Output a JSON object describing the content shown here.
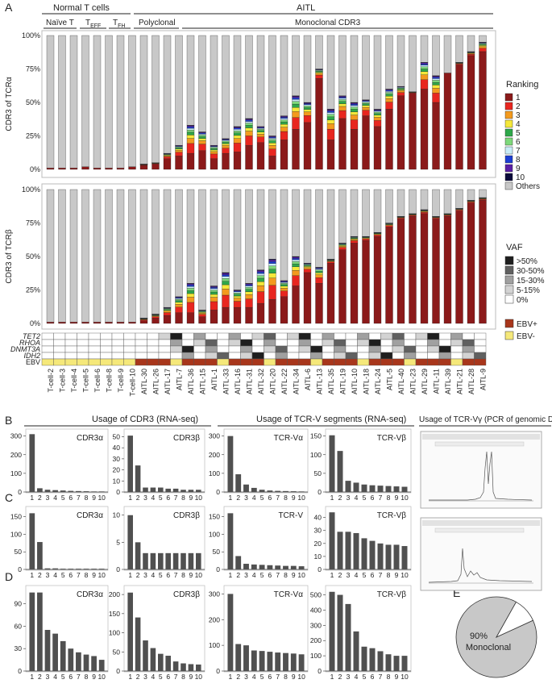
{
  "panel_labels": {
    "A": "A",
    "B": "B",
    "C": "C",
    "D": "D",
    "E": "E"
  },
  "top_headers": {
    "normal": "Normal T cells",
    "aitl": "AITL",
    "naive": "Naïve T",
    "teff": "T",
    "teff_sub": "EFF",
    "tfh": "T",
    "tfh_sub": "FH",
    "polyclonal": "Polyclonal",
    "monoclonal": "Monoclonal CDR3"
  },
  "samples": [
    "T-cell-2",
    "T-cell-3",
    "T-cell-4",
    "T-cell-5",
    "T-cell-6",
    "T-cell-8",
    "T-cell-9",
    "T-cell-10",
    "AITL-30",
    "AITL-26",
    "AITL-17",
    "AITL-7",
    "AITL-36",
    "AITL-15",
    "AITL-1",
    "AITL-33",
    "AITL-16",
    "AITL-31",
    "AITL-32",
    "AITL-20",
    "AITL-22",
    "AITL-34",
    "AITL-6",
    "AITL-13",
    "AITL-35",
    "AITL-19",
    "AITL-10",
    "AITL-18",
    "AITL-24",
    "AITL-5",
    "AITL-40",
    "AITL-23",
    "AITL-29",
    "AITL-11",
    "AITL-39",
    "AITL-21",
    "AITL-28",
    "AITL-9"
  ],
  "chart_data": [
    {
      "id": "A-alpha",
      "type": "bar",
      "subtype": "stacked-100",
      "title": "",
      "ylabel": "CDR3 of TCRα",
      "yticks": [
        "0%",
        "25%",
        "50%",
        "75%",
        "100%"
      ],
      "ylim": [
        0,
        100
      ],
      "top1": [
        1,
        1,
        1,
        2,
        1,
        1,
        1,
        2,
        3,
        4,
        8,
        10,
        12,
        14,
        8,
        12,
        13,
        18,
        20,
        10,
        22,
        30,
        35,
        68,
        22,
        38,
        30,
        40,
        32,
        45,
        55,
        57,
        60,
        50,
        72,
        78,
        85,
        88
      ],
      "others": [
        99,
        99,
        99,
        98,
        99,
        99,
        99,
        98,
        96,
        95,
        88,
        82,
        67,
        72,
        82,
        77,
        68,
        62,
        68,
        75,
        60,
        45,
        50,
        25,
        55,
        45,
        50,
        48,
        55,
        40,
        38,
        42,
        20,
        30,
        28,
        20,
        12,
        5
      ]
    },
    {
      "id": "A-beta",
      "type": "bar",
      "subtype": "stacked-100",
      "title": "",
      "ylabel": "CDR3 of TCRβ",
      "yticks": [
        "0%",
        "25%",
        "50%",
        "75%",
        "100%"
      ],
      "ylim": [
        0,
        100
      ],
      "top1": [
        1,
        1,
        1,
        1,
        1,
        1,
        1,
        1,
        2,
        4,
        6,
        8,
        8,
        5,
        10,
        12,
        12,
        12,
        15,
        18,
        20,
        28,
        38,
        30,
        45,
        55,
        60,
        62,
        65,
        72,
        78,
        80,
        82,
        78,
        80,
        84,
        90,
        92
      ],
      "others": [
        99,
        99,
        99,
        99,
        99,
        99,
        99,
        99,
        96,
        93,
        88,
        80,
        70,
        90,
        72,
        62,
        75,
        70,
        60,
        52,
        68,
        50,
        55,
        58,
        52,
        40,
        35,
        35,
        32,
        25,
        20,
        18,
        15,
        20,
        18,
        14,
        8,
        6
      ]
    },
    {
      "id": "B-CDR3a",
      "type": "bar",
      "title": "CDR3α",
      "categories": [
        "1",
        "2",
        "3",
        "4",
        "5",
        "6",
        "7",
        "8",
        "9",
        "10"
      ],
      "values": [
        310,
        20,
        12,
        10,
        8,
        6,
        5,
        4,
        3,
        3
      ],
      "yticks": [
        "0",
        "100",
        "200",
        "300"
      ],
      "ylim": [
        0,
        320
      ]
    },
    {
      "id": "B-CDR3b",
      "type": "bar",
      "title": "CDR3β",
      "categories": [
        "1",
        "2",
        "3",
        "4",
        "5",
        "6",
        "7",
        "8",
        "9",
        "10"
      ],
      "values": [
        51,
        24,
        4,
        4,
        4,
        3,
        3,
        2,
        2,
        2
      ],
      "yticks": [
        "0",
        "10",
        "20",
        "30",
        "40",
        "50"
      ],
      "ylim": [
        0,
        54
      ]
    },
    {
      "id": "B-TCRVa",
      "type": "bar",
      "title": "TCR-Vα",
      "categories": [
        "1",
        "2",
        "3",
        "4",
        "5",
        "6",
        "7",
        "8",
        "9",
        "10"
      ],
      "values": [
        300,
        95,
        40,
        22,
        12,
        8,
        6,
        5,
        4,
        3
      ],
      "yticks": [
        "0",
        "100",
        "200",
        "300"
      ],
      "ylim": [
        0,
        320
      ]
    },
    {
      "id": "B-TCRVb",
      "type": "bar",
      "title": "TCR-Vβ",
      "categories": [
        "1",
        "2",
        "3",
        "4",
        "5",
        "6",
        "7",
        "8",
        "9",
        "10"
      ],
      "values": [
        152,
        110,
        30,
        25,
        20,
        18,
        17,
        16,
        15,
        14
      ],
      "yticks": [
        "0",
        "50",
        "100",
        "150"
      ],
      "ylim": [
        0,
        160
      ]
    },
    {
      "id": "C-CDR3a",
      "type": "bar",
      "title": "CDR3α",
      "categories": [
        "1",
        "2",
        "3",
        "4",
        "5",
        "6",
        "7",
        "8",
        "9",
        "10"
      ],
      "values": [
        160,
        78,
        3,
        3,
        2,
        2,
        2,
        2,
        2,
        2
      ],
      "yticks": [
        "0",
        "50",
        "100",
        "150"
      ],
      "ylim": [
        0,
        170
      ]
    },
    {
      "id": "C-CDR3b",
      "type": "bar",
      "title": "CDR3β",
      "categories": [
        "1",
        "2",
        "3",
        "4",
        "5",
        "6",
        "7",
        "8",
        "9",
        "10"
      ],
      "values": [
        10,
        5,
        3,
        3,
        3,
        3,
        3,
        3,
        3,
        3
      ],
      "yticks": [
        "0",
        "5",
        "10"
      ],
      "ylim": [
        0,
        11
      ]
    },
    {
      "id": "C-TCRV",
      "type": "bar",
      "title": "TCR-V",
      "categories": [
        "1",
        "2",
        "3",
        "4",
        "5",
        "6",
        "7",
        "8",
        "9",
        "10"
      ],
      "values": [
        160,
        38,
        16,
        14,
        13,
        12,
        11,
        10,
        10,
        9
      ],
      "yticks": [
        "0",
        "50",
        "100",
        "150"
      ],
      "ylim": [
        0,
        170
      ]
    },
    {
      "id": "C-TCRVb",
      "type": "bar",
      "title": "TCR-Vβ",
      "categories": [
        "1",
        "2",
        "3",
        "4",
        "5",
        "6",
        "7",
        "8",
        "9",
        "10"
      ],
      "values": [
        44,
        29,
        29,
        28,
        24,
        22,
        20,
        19,
        19,
        18
      ],
      "yticks": [
        "0",
        "10",
        "20",
        "30",
        "40"
      ],
      "ylim": [
        0,
        46
      ]
    },
    {
      "id": "D-CDR3a",
      "type": "bar",
      "title": "CDR3α",
      "categories": [
        "1",
        "2",
        "3",
        "4",
        "5",
        "6",
        "7",
        "8",
        "9",
        "10"
      ],
      "values": [
        105,
        105,
        55,
        50,
        40,
        30,
        25,
        22,
        20,
        15
      ],
      "yticks": [
        "0",
        "30",
        "60",
        "90"
      ],
      "ylim": [
        0,
        110
      ]
    },
    {
      "id": "D-CDR3b",
      "type": "bar",
      "title": "CDR3β",
      "categories": [
        "1",
        "2",
        "3",
        "4",
        "5",
        "6",
        "7",
        "8",
        "9",
        "10"
      ],
      "values": [
        205,
        140,
        80,
        60,
        45,
        40,
        25,
        20,
        18,
        17
      ],
      "yticks": [
        "0",
        "50",
        "100",
        "150",
        "200"
      ],
      "ylim": [
        0,
        215
      ]
    },
    {
      "id": "D-TCRVa",
      "type": "bar",
      "title": "TCR-Vα",
      "categories": [
        "1",
        "2",
        "3",
        "4",
        "5",
        "6",
        "7",
        "8",
        "9",
        "10"
      ],
      "values": [
        300,
        105,
        100,
        80,
        78,
        75,
        72,
        70,
        68,
        65
      ],
      "yticks": [
        "0",
        "100",
        "200",
        "300"
      ],
      "ylim": [
        0,
        320
      ]
    },
    {
      "id": "D-TCRVb",
      "type": "bar",
      "title": "TCR-Vβ",
      "categories": [
        "1",
        "2",
        "3",
        "4",
        "5",
        "6",
        "7",
        "8",
        "9",
        "10"
      ],
      "values": [
        520,
        500,
        440,
        260,
        160,
        150,
        130,
        110,
        100,
        100
      ],
      "yticks": [
        "0",
        "100",
        "200",
        "300",
        "400",
        "500"
      ],
      "ylim": [
        0,
        540
      ]
    },
    {
      "id": "E-pie",
      "type": "pie",
      "title": "",
      "slices": [
        {
          "label": "Monoclonal",
          "value": 90
        },
        {
          "label": "Other",
          "value": 10
        }
      ],
      "label": "90%",
      "label2": "Monoclonal"
    }
  ],
  "section_headers": {
    "cdr3_usage": "Usage of CDR3 (RNA-seq)",
    "tcrv_usage": "Usage of TCR-V segments (RNA-seq)",
    "tcrvg_usage": "Usage of TCR-Vγ (PCR of genomic DNA)"
  },
  "heatmap_genes": [
    "TET2",
    "RHOA",
    "DNMT3A",
    "IDH2",
    "EBV"
  ],
  "legend_ranking": {
    "title": "Ranking",
    "items": [
      {
        "label": "1",
        "color": "#8b1a1a"
      },
      {
        "label": "2",
        "color": "#e8261f"
      },
      {
        "label": "3",
        "color": "#f39a1e"
      },
      {
        "label": "4",
        "color": "#f5e83a"
      },
      {
        "label": "5",
        "color": "#2ea84a"
      },
      {
        "label": "6",
        "color": "#7ed97b"
      },
      {
        "label": "7",
        "color": "#c9ecf7"
      },
      {
        "label": "8",
        "color": "#1c3fd4"
      },
      {
        "label": "9",
        "color": "#5a1fa6"
      },
      {
        "label": "10",
        "color": "#0a0a3a"
      },
      {
        "label": "Others",
        "color": "#c8c8c8"
      }
    ]
  },
  "legend_vaf": {
    "title": "VAF",
    "items": [
      {
        "label": ">50%",
        "color": "#1e1e1e"
      },
      {
        "label": "30-50%",
        "color": "#606060"
      },
      {
        "label": "15-30%",
        "color": "#a0a0a0"
      },
      {
        "label": "5-15%",
        "color": "#d3d3d3"
      },
      {
        "label": "0%",
        "color": "#ffffff"
      }
    ]
  },
  "legend_ebv": {
    "items": [
      {
        "label": "EBV+",
        "color": "#a8361b"
      },
      {
        "label": "EBV-",
        "color": "#f5e87a"
      }
    ]
  }
}
